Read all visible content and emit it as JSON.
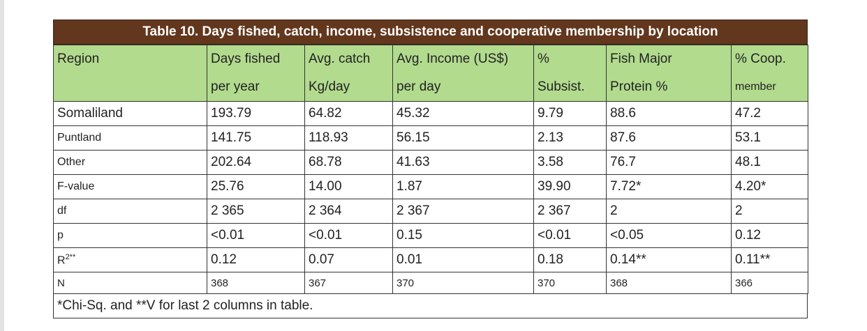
{
  "title": "Table 10. Days fished, catch, income, subsistence and cooperative membership by location",
  "headers": [
    [
      "Region",
      ""
    ],
    [
      "Days fished",
      "per year"
    ],
    [
      "Avg. catch",
      "Kg/day"
    ],
    [
      "Avg. Income (US$)",
      "per day"
    ],
    [
      "%",
      "Subsist."
    ],
    [
      "Fish Major",
      "Protein  %"
    ],
    [
      "% Coop.",
      "member"
    ]
  ],
  "rows": [
    [
      "Somaliland",
      "193.79",
      "64.82",
      "45.32",
      "9.79",
      "88.6",
      "47.2"
    ],
    [
      "Puntland",
      "141.75",
      "118.93",
      "56.15",
      "2.13",
      "87.6",
      "53.1"
    ],
    [
      "Other",
      "202.64",
      "68.78",
      "41.63",
      "3.58",
      "76.7",
      "48.1"
    ],
    [
      "F-value",
      "25.76",
      "14.00",
      "1.87",
      "39.90",
      "7.72*",
      "4.20*"
    ],
    [
      "df",
      "2  365",
      "2  364",
      "2  367",
      "2  367",
      "2",
      "2"
    ],
    [
      "p",
      "<0.01",
      "<0.01",
      "0.15",
      "<0.01",
      "<0.05",
      "0.12"
    ],
    [
      "R",
      "0.12",
      "0.07",
      "0.01",
      "0.18",
      "0.14**",
      "0.11**"
    ],
    [
      "N",
      "368",
      "367",
      "370",
      "370",
      "368",
      "366"
    ]
  ],
  "r2_sup": "2**",
  "footnote": "*Chi-Sq. and **V for last 2 columns in table."
}
